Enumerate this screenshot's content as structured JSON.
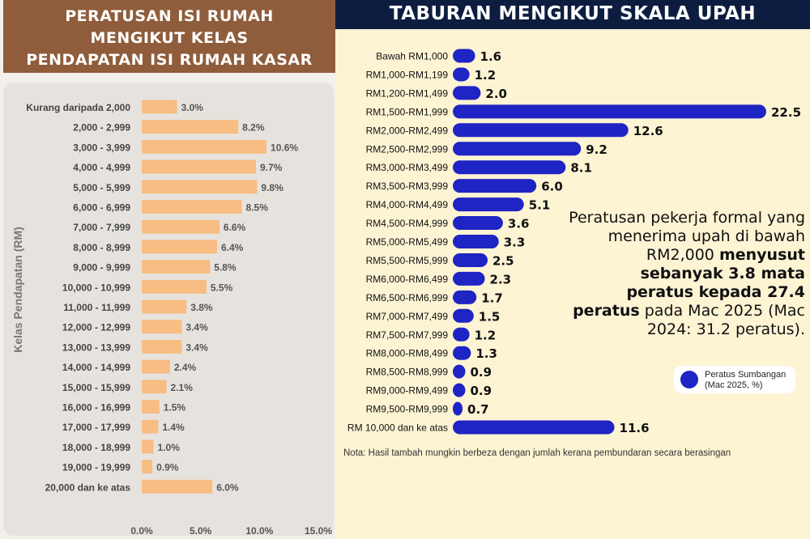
{
  "left": {
    "title_lines": [
      "PERATUSAN ISI RUMAH",
      "MENGIKUT KELAS",
      "PENDAPATAN ISI RUMAH KASAR"
    ],
    "ylabel": "Kelas Pendapatan (RM)",
    "colors": {
      "header_bg": "#8f5d3c",
      "bar": "#f7bd83",
      "card_bg": "#e6e3df"
    }
  },
  "right": {
    "title": "TABURAN MENGIKUT SKALA UPAH",
    "annotation": {
      "plain_1": "Peratusan pekerja formal yang menerima upah di bawah RM2,000",
      "bold": "menyusut sebanyak 3.8 mata peratus kepada 27.4 peratus",
      "plain_2": "pada Mac 2025 (Mac 2024: 31.2 peratus)."
    },
    "legend": {
      "label_line1": "Peratus Sumbangan",
      "label_line2": "(Mac 2025, %)"
    },
    "note": "Nota: Hasil tambah mungkin berbeza dengan jumlah kerana pembundaran secara berasingan",
    "colors": {
      "header_bg": "#0d1d3f",
      "bar": "#1f24c4",
      "panel_bg": "#fdf4d4"
    }
  },
  "chart_data": [
    {
      "type": "bar",
      "orientation": "horizontal",
      "title": "PERATUSAN ISI RUMAH MENGIKUT KELAS PENDAPATAN ISI RUMAH KASAR",
      "ylabel": "Kelas Pendapatan (RM)",
      "xlabel": "",
      "categories": [
        "Kurang daripada 2,000",
        "2,000 - 2,999",
        "3,000 - 3,999",
        "4,000 - 4,999",
        "5,000 - 5,999",
        "6,000 - 6,999",
        "7,000 - 7,999",
        "8,000 - 8,999",
        "9,000 - 9,999",
        "10,000 - 10,999",
        "11,000 - 11,999",
        "12,000 - 12,999",
        "13,000 - 13,999",
        "14,000 - 14,999",
        "15,000 - 15,999",
        "16,000 - 16,999",
        "17,000 - 17,999",
        "18,000 - 18,999",
        "19,000 - 19,999",
        "20,000 dan ke atas"
      ],
      "values": [
        3.0,
        8.2,
        10.6,
        9.7,
        9.8,
        8.5,
        6.6,
        6.4,
        5.8,
        5.5,
        3.8,
        3.4,
        3.4,
        2.4,
        2.1,
        1.5,
        1.4,
        1.0,
        0.9,
        6.0
      ],
      "value_labels": [
        "3.0%",
        "8.2%",
        "10.6%",
        "9.7%",
        "9.8%",
        "8.5%",
        "6.6%",
        "6.4%",
        "5.8%",
        "5.5%",
        "3.8%",
        "3.4%",
        "3.4%",
        "2.4%",
        "2.1%",
        "1.5%",
        "1.4%",
        "1.0%",
        "0.9%",
        "6.0%"
      ],
      "xlim": [
        0,
        15
      ],
      "xticks": [
        "0.0%",
        "5.0%",
        "10.0%",
        "15.0%"
      ],
      "grid": false,
      "legend": false
    },
    {
      "type": "bar",
      "orientation": "horizontal",
      "title": "TABURAN MENGIKUT SKALA UPAH",
      "xlabel": "",
      "ylabel": "",
      "categories": [
        "Bawah RM1,000",
        "RM1,000-RM1,199",
        "RM1,200-RM1,499",
        "RM1,500-RM1,999",
        "RM2,000-RM2,499",
        "RM2,500-RM2,999",
        "RM3,000-RM3,499",
        "RM3,500-RM3,999",
        "RM4,000-RM4,499",
        "RM4,500-RM4,999",
        "RM5,000-RM5,499",
        "RM5,500-RM5,999",
        "RM6,000-RM6,499",
        "RM6,500-RM6,999",
        "RM7,000-RM7,499",
        "RM7,500-RM7,999",
        "RM8,000-RM8,499",
        "RM8,500-RM8,999",
        "RM9,000-RM9,499",
        "RM9,500-RM9,999",
        "RM 10,000 dan ke atas"
      ],
      "values": [
        1.6,
        1.2,
        2.0,
        22.5,
        12.6,
        9.2,
        8.1,
        6.0,
        5.1,
        3.6,
        3.3,
        2.5,
        2.3,
        1.7,
        1.5,
        1.2,
        1.3,
        0.9,
        0.9,
        0.7,
        11.6
      ],
      "value_labels": [
        "1.6",
        "1.2",
        "2.0",
        "22.5",
        "12.6",
        "9.2",
        "8.1",
        "6.0",
        "5.1",
        "3.6",
        "3.3",
        "2.5",
        "2.3",
        "1.7",
        "1.5",
        "1.2",
        "1.3",
        "0.9",
        "0.9",
        "0.7",
        "11.6"
      ],
      "series": [
        {
          "name": "Peratus Sumbangan (Mac 2025, %)",
          "values": [
            1.6,
            1.2,
            2.0,
            22.5,
            12.6,
            9.2,
            8.1,
            6.0,
            5.1,
            3.6,
            3.3,
            2.5,
            2.3,
            1.7,
            1.5,
            1.2,
            1.3,
            0.9,
            0.9,
            0.7,
            11.6
          ]
        }
      ],
      "legend": "right",
      "grid": false
    }
  ]
}
